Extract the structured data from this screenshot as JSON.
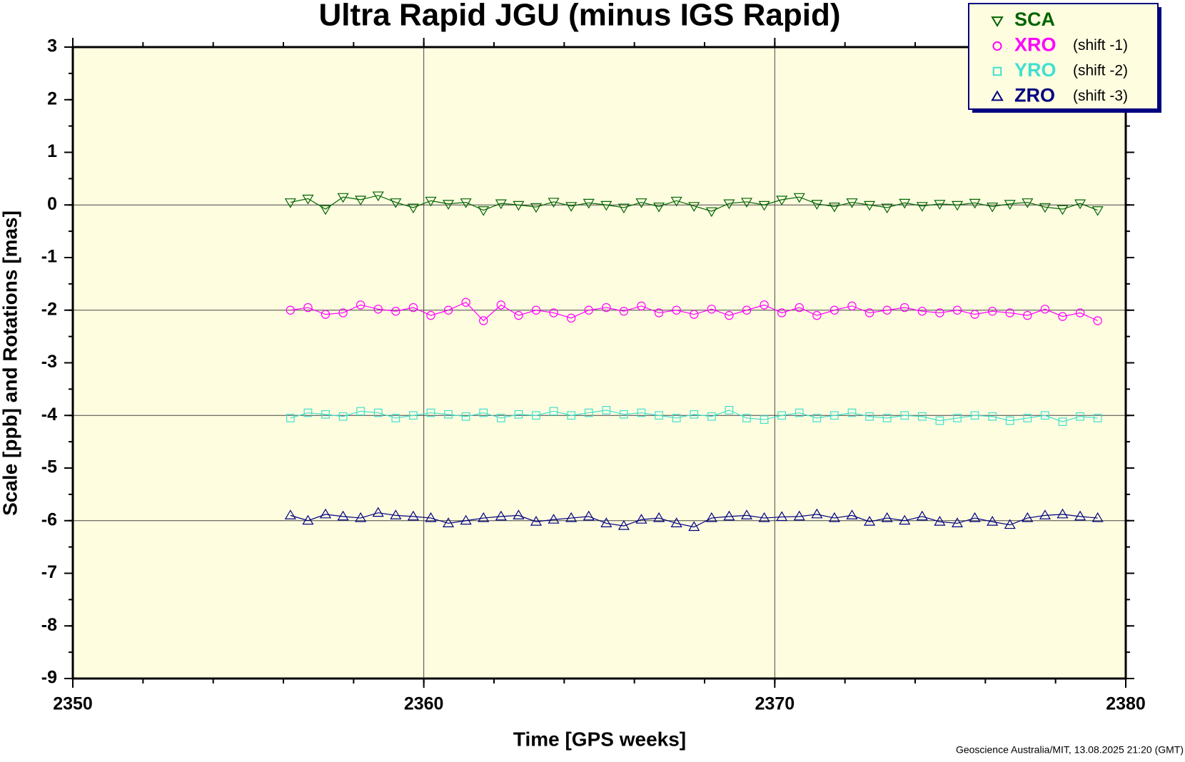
{
  "chart_data": {
    "type": "line",
    "title": "Ultra Rapid JGU (minus IGS Rapid)",
    "x_label": "Time [GPS weeks]",
    "y_label": "Scale [ppb] and Rotations [mas]",
    "footer": "Geoscience Australia/MIT, 13.08.2025 21:20 (GMT)",
    "xlim": [
      2350,
      2380
    ],
    "xticks": [
      2350,
      2360,
      2370,
      2380
    ],
    "xgrid": [
      2360,
      2370
    ],
    "x_minor_step": 2,
    "ylim": [
      -9,
      3
    ],
    "yticks": [
      -9,
      -8,
      -7,
      -6,
      -5,
      -4,
      -3,
      -2,
      -1,
      0,
      1,
      2,
      3
    ],
    "ygrid": [
      0,
      -2,
      -4,
      -6
    ],
    "y_minor_step": 0.5,
    "background": "#fffde0",
    "legend": "top-right",
    "x": [
      2356.2,
      2356.7,
      2357.2,
      2357.7,
      2358.2,
      2358.7,
      2359.2,
      2359.7,
      2360.2,
      2360.7,
      2361.2,
      2361.7,
      2362.2,
      2362.7,
      2363.2,
      2363.7,
      2364.2,
      2364.7,
      2365.2,
      2365.7,
      2366.2,
      2366.7,
      2367.2,
      2367.7,
      2368.2,
      2368.7,
      2369.2,
      2369.7,
      2370.2,
      2370.7,
      2371.2,
      2371.7,
      2372.2,
      2372.7,
      2373.2,
      2373.7,
      2374.2,
      2374.7,
      2375.2,
      2375.7,
      2376.2,
      2376.7,
      2377.2,
      2377.7,
      2378.2,
      2378.7,
      2379.2
    ],
    "series": [
      {
        "name": "SCA",
        "color": "#006400",
        "marker": "triangle-down",
        "values": [
          0.05,
          0.12,
          -0.08,
          0.15,
          0.1,
          0.18,
          0.05,
          -0.05,
          0.08,
          0.02,
          0.05,
          -0.1,
          0.03,
          0.0,
          -0.04,
          0.06,
          -0.02,
          0.04,
          0.0,
          -0.05,
          0.05,
          -0.03,
          0.08,
          -0.02,
          -0.12,
          0.03,
          0.06,
          0.0,
          0.1,
          0.15,
          0.02,
          -0.03,
          0.05,
          0.0,
          -0.05,
          0.04,
          -0.02,
          0.02,
          0.0,
          0.04,
          -0.03,
          0.02,
          0.05,
          -0.04,
          -0.08,
          0.03,
          -0.1
        ]
      },
      {
        "name": "XRO",
        "note": "(shift -1)",
        "color": "#ff00ff",
        "marker": "circle",
        "values": [
          -2.0,
          -1.95,
          -2.08,
          -2.05,
          -1.9,
          -1.98,
          -2.02,
          -1.95,
          -2.1,
          -2.0,
          -1.85,
          -2.2,
          -1.9,
          -2.1,
          -2.0,
          -2.05,
          -2.15,
          -2.0,
          -1.95,
          -2.02,
          -1.92,
          -2.05,
          -2.0,
          -2.08,
          -1.98,
          -2.1,
          -2.0,
          -1.9,
          -2.05,
          -1.95,
          -2.1,
          -2.0,
          -1.92,
          -2.05,
          -2.0,
          -1.95,
          -2.02,
          -2.05,
          -2.0,
          -2.08,
          -2.02,
          -2.05,
          -2.1,
          -1.98,
          -2.12,
          -2.05,
          -2.2
        ]
      },
      {
        "name": "YRO",
        "note": "(shift -2)",
        "color": "#40e0d0",
        "marker": "square",
        "values": [
          -4.05,
          -3.95,
          -3.98,
          -4.02,
          -3.92,
          -3.95,
          -4.05,
          -4.0,
          -3.95,
          -3.98,
          -4.02,
          -3.95,
          -4.05,
          -3.98,
          -4.0,
          -3.92,
          -4.0,
          -3.95,
          -3.9,
          -3.98,
          -3.95,
          -4.0,
          -4.05,
          -3.98,
          -4.02,
          -3.9,
          -4.05,
          -4.08,
          -4.0,
          -3.95,
          -4.05,
          -4.0,
          -3.95,
          -4.02,
          -4.05,
          -4.0,
          -4.02,
          -4.1,
          -4.05,
          -4.0,
          -4.02,
          -4.1,
          -4.05,
          -4.0,
          -4.12,
          -4.02,
          -4.05
        ]
      },
      {
        "name": "ZRO",
        "note": "(shift -3)",
        "color": "#000080",
        "marker": "triangle-up",
        "values": [
          -5.9,
          -6.0,
          -5.88,
          -5.92,
          -5.95,
          -5.85,
          -5.9,
          -5.92,
          -5.95,
          -6.05,
          -6.0,
          -5.95,
          -5.92,
          -5.9,
          -6.02,
          -5.98,
          -5.95,
          -5.92,
          -6.05,
          -6.1,
          -5.98,
          -5.95,
          -6.05,
          -6.12,
          -5.95,
          -5.92,
          -5.9,
          -5.95,
          -5.93,
          -5.92,
          -5.88,
          -5.95,
          -5.9,
          -6.02,
          -5.95,
          -6.0,
          -5.92,
          -6.02,
          -6.05,
          -5.95,
          -6.02,
          -6.08,
          -5.95,
          -5.9,
          -5.88,
          -5.92,
          -5.95
        ]
      }
    ]
  }
}
